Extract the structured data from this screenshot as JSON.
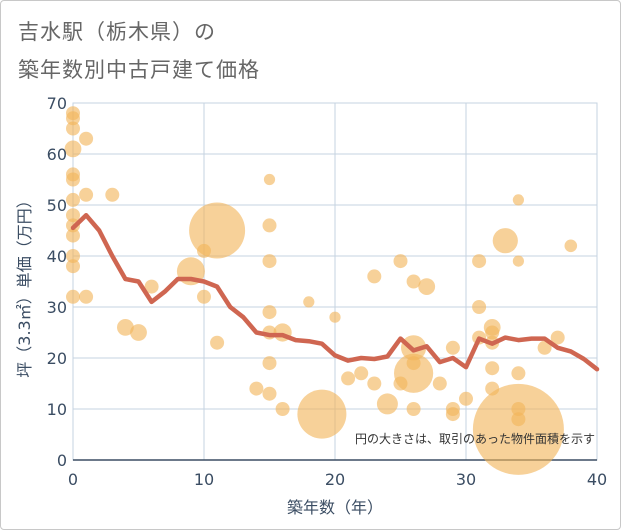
{
  "title_line1": "吉水駅（栃木県）の",
  "title_line2": "築年数別中古戸建て価格",
  "chart_data": {
    "type": "scatter",
    "title": "吉水駅（栃木県）の築年数別中古戸建て価格",
    "xlabel": "築年数（年）",
    "ylabel": "坪（3.3㎡）単価（万円）",
    "xlim": [
      0,
      40
    ],
    "ylim": [
      0,
      70
    ],
    "xticks": [
      "0",
      "10",
      "20",
      "30",
      "40"
    ],
    "yticks": [
      "0",
      "10",
      "20",
      "30",
      "40",
      "50",
      "60",
      "70"
    ],
    "grid": true,
    "annotation": "円の大きさは、取引のあった物件面積を示す",
    "colors": {
      "bubble": "#f2b55a",
      "trend": "#cf6651",
      "grid": "#c6d3e0",
      "tick": "#3b4d63"
    },
    "points": [
      {
        "x": 0,
        "y": 68,
        "s": 1
      },
      {
        "x": 0,
        "y": 67,
        "s": 1
      },
      {
        "x": 0,
        "y": 65,
        "s": 1
      },
      {
        "x": 0,
        "y": 61,
        "s": 1.2
      },
      {
        "x": 0,
        "y": 56,
        "s": 1
      },
      {
        "x": 0,
        "y": 55,
        "s": 1
      },
      {
        "x": 0,
        "y": 51,
        "s": 1
      },
      {
        "x": 0,
        "y": 48,
        "s": 1
      },
      {
        "x": 0,
        "y": 46,
        "s": 1
      },
      {
        "x": 0,
        "y": 44,
        "s": 1
      },
      {
        "x": 0,
        "y": 40,
        "s": 1
      },
      {
        "x": 0,
        "y": 38,
        "s": 1
      },
      {
        "x": 0,
        "y": 32,
        "s": 1
      },
      {
        "x": 1,
        "y": 63,
        "s": 1
      },
      {
        "x": 1,
        "y": 52,
        "s": 1
      },
      {
        "x": 1,
        "y": 32,
        "s": 1
      },
      {
        "x": 3,
        "y": 52,
        "s": 1
      },
      {
        "x": 4,
        "y": 26,
        "s": 1.2
      },
      {
        "x": 5,
        "y": 25,
        "s": 1.2
      },
      {
        "x": 6,
        "y": 34,
        "s": 1
      },
      {
        "x": 9,
        "y": 37,
        "s": 2
      },
      {
        "x": 10,
        "y": 41,
        "s": 1
      },
      {
        "x": 10,
        "y": 32,
        "s": 1
      },
      {
        "x": 11,
        "y": 45,
        "s": 4
      },
      {
        "x": 11,
        "y": 23,
        "s": 1
      },
      {
        "x": 14,
        "y": 14,
        "s": 1
      },
      {
        "x": 15,
        "y": 55,
        "s": 0.8
      },
      {
        "x": 15,
        "y": 46,
        "s": 1
      },
      {
        "x": 15,
        "y": 39,
        "s": 1
      },
      {
        "x": 15,
        "y": 29,
        "s": 1
      },
      {
        "x": 15,
        "y": 25,
        "s": 1
      },
      {
        "x": 15,
        "y": 19,
        "s": 1
      },
      {
        "x": 15,
        "y": 13,
        "s": 1
      },
      {
        "x": 16,
        "y": 25,
        "s": 1.3
      },
      {
        "x": 16,
        "y": 10,
        "s": 1
      },
      {
        "x": 18,
        "y": 31,
        "s": 0.8
      },
      {
        "x": 19,
        "y": 9,
        "s": 3.5
      },
      {
        "x": 20,
        "y": 28,
        "s": 0.8
      },
      {
        "x": 21,
        "y": 16,
        "s": 1
      },
      {
        "x": 22,
        "y": 17,
        "s": 1
      },
      {
        "x": 23,
        "y": 36,
        "s": 1
      },
      {
        "x": 23,
        "y": 15,
        "s": 1
      },
      {
        "x": 24,
        "y": 11,
        "s": 1.5
      },
      {
        "x": 25,
        "y": 39,
        "s": 1
      },
      {
        "x": 25,
        "y": 15,
        "s": 1
      },
      {
        "x": 26,
        "y": 35,
        "s": 1
      },
      {
        "x": 26,
        "y": 22,
        "s": 1.8
      },
      {
        "x": 26,
        "y": 19,
        "s": 1
      },
      {
        "x": 26,
        "y": 17,
        "s": 2.8
      },
      {
        "x": 26,
        "y": 10,
        "s": 1
      },
      {
        "x": 27,
        "y": 34,
        "s": 1.2
      },
      {
        "x": 28,
        "y": 15,
        "s": 1
      },
      {
        "x": 29,
        "y": 22,
        "s": 1
      },
      {
        "x": 29,
        "y": 10,
        "s": 1
      },
      {
        "x": 29,
        "y": 9,
        "s": 1
      },
      {
        "x": 30,
        "y": 12,
        "s": 1
      },
      {
        "x": 31,
        "y": 39,
        "s": 1
      },
      {
        "x": 31,
        "y": 30,
        "s": 1
      },
      {
        "x": 31,
        "y": 24,
        "s": 1
      },
      {
        "x": 32,
        "y": 26,
        "s": 1.2
      },
      {
        "x": 32,
        "y": 25,
        "s": 1
      },
      {
        "x": 32,
        "y": 23,
        "s": 1
      },
      {
        "x": 32,
        "y": 18,
        "s": 1
      },
      {
        "x": 32,
        "y": 14,
        "s": 1
      },
      {
        "x": 33,
        "y": 43,
        "s": 1.8
      },
      {
        "x": 34,
        "y": 51,
        "s": 0.8
      },
      {
        "x": 34,
        "y": 39,
        "s": 0.8
      },
      {
        "x": 34,
        "y": 17,
        "s": 1
      },
      {
        "x": 34,
        "y": 10,
        "s": 1
      },
      {
        "x": 34,
        "y": 8,
        "s": 1
      },
      {
        "x": 34,
        "y": 6,
        "s": 6.5
      },
      {
        "x": 36,
        "y": 22,
        "s": 1
      },
      {
        "x": 37,
        "y": 24,
        "s": 1
      },
      {
        "x": 38,
        "y": 42,
        "s": 0.9
      }
    ],
    "trend": {
      "x": [
        0,
        1,
        2,
        3,
        4,
        5,
        6,
        7,
        8,
        9,
        10,
        11,
        12,
        13,
        14,
        15,
        16,
        17,
        18,
        19,
        20,
        21,
        22,
        23,
        24,
        25,
        26,
        27,
        28,
        29,
        30,
        31,
        32,
        33,
        34,
        35,
        36,
        37,
        38,
        39,
        40
      ],
      "y": [
        45.5,
        48,
        45,
        40,
        35.5,
        35,
        31,
        33,
        35.5,
        35.5,
        35,
        34,
        30,
        28,
        25,
        24.5,
        24.5,
        23.5,
        23.3,
        22.8,
        20.5,
        19.5,
        20,
        19.8,
        20.3,
        23.8,
        21.5,
        22.3,
        19.2,
        20,
        18.2,
        23.8,
        22.8,
        24,
        23.5,
        23.8,
        23.8,
        22,
        21.3,
        19.8,
        17.8
      ]
    }
  }
}
